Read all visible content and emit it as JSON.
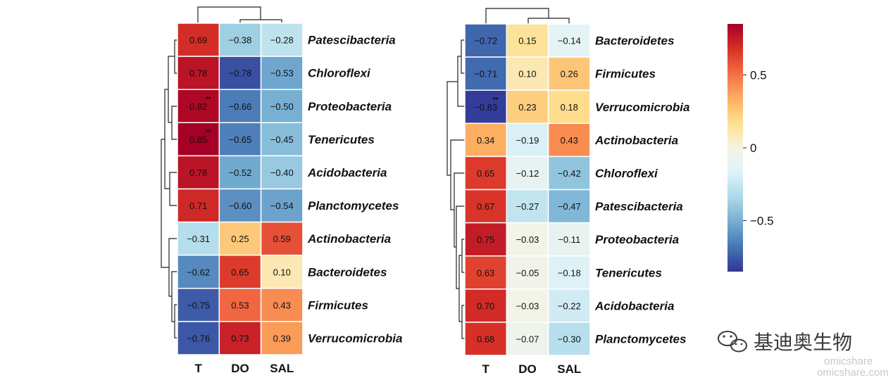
{
  "chart_data": [
    {
      "type": "heatmap",
      "columns": [
        "T",
        "DO",
        "SAL"
      ],
      "rows": [
        {
          "label": "Patescibacteria",
          "values": [
            0.69,
            -0.38,
            -0.28
          ],
          "labels": [
            "0.69",
            "−0.38",
            "−0.28"
          ],
          "stars": [
            "",
            "",
            ""
          ]
        },
        {
          "label": "Chloroflexi",
          "values": [
            0.78,
            -0.78,
            -0.53
          ],
          "labels": [
            "0.78",
            "−0.78",
            "−0.53"
          ],
          "stars": [
            "",
            "",
            ""
          ]
        },
        {
          "label": "Proteobacteria",
          "values": [
            0.82,
            -0.66,
            -0.5
          ],
          "labels": [
            "0.82",
            "−0.66",
            "−0.50"
          ],
          "stars": [
            "**",
            "",
            ""
          ]
        },
        {
          "label": "Tenericutes",
          "values": [
            0.85,
            -0.65,
            -0.45
          ],
          "labels": [
            "0.85",
            "−0.65",
            "−0.45"
          ],
          "stars": [
            "**",
            "",
            ""
          ]
        },
        {
          "label": "Acidobacteria",
          "values": [
            0.78,
            -0.52,
            -0.4
          ],
          "labels": [
            "0.78",
            "−0.52",
            "−0.40"
          ],
          "stars": [
            "",
            "",
            ""
          ]
        },
        {
          "label": "Planctomycetes",
          "values": [
            0.71,
            -0.6,
            -0.54
          ],
          "labels": [
            "0.71",
            "−0.60",
            "−0.54"
          ],
          "stars": [
            "",
            "",
            ""
          ]
        },
        {
          "label": "Actinobacteria",
          "values": [
            -0.31,
            0.25,
            0.59
          ],
          "labels": [
            "−0.31",
            "0.25",
            "0.59"
          ],
          "stars": [
            "",
            "",
            ""
          ]
        },
        {
          "label": "Bacteroidetes",
          "values": [
            -0.62,
            0.65,
            0.1
          ],
          "labels": [
            "−0.62",
            "0.65",
            "0.10"
          ],
          "stars": [
            "",
            "",
            ""
          ]
        },
        {
          "label": "Firmicutes",
          "values": [
            -0.75,
            0.53,
            0.43
          ],
          "labels": [
            "−0.75",
            "0.53",
            "0.43"
          ],
          "stars": [
            "",
            "",
            ""
          ]
        },
        {
          "label": "Verrucomicrobia",
          "values": [
            -0.76,
            0.73,
            0.39
          ],
          "labels": [
            "−0.76",
            "0.73",
            "0.39"
          ],
          "stars": [
            "",
            "",
            ""
          ]
        }
      ]
    },
    {
      "type": "heatmap",
      "columns": [
        "T",
        "DO",
        "SAL"
      ],
      "rows": [
        {
          "label": "Bacteroidetes",
          "values": [
            -0.72,
            0.15,
            -0.14
          ],
          "labels": [
            "−0.72",
            "0.15",
            "−0.14"
          ],
          "stars": [
            "",
            "",
            ""
          ]
        },
        {
          "label": "Firmicutes",
          "values": [
            -0.71,
            0.1,
            0.26
          ],
          "labels": [
            "−0.71",
            "0.10",
            "0.26"
          ],
          "stars": [
            "",
            "",
            ""
          ]
        },
        {
          "label": "Verrucomicrobia",
          "values": [
            -0.83,
            0.23,
            0.18
          ],
          "labels": [
            "−0.83",
            "0.23",
            "0.18"
          ],
          "stars": [
            "**",
            "",
            ""
          ]
        },
        {
          "label": "Actinobacteria",
          "values": [
            0.34,
            -0.19,
            0.43
          ],
          "labels": [
            "0.34",
            "−0.19",
            "0.43"
          ],
          "stars": [
            "",
            "",
            ""
          ]
        },
        {
          "label": "Chloroflexi",
          "values": [
            0.65,
            -0.12,
            -0.42
          ],
          "labels": [
            "0.65",
            "−0.12",
            "−0.42"
          ],
          "stars": [
            "",
            "",
            ""
          ]
        },
        {
          "label": "Patescibacteria",
          "values": [
            0.67,
            -0.27,
            -0.47
          ],
          "labels": [
            "0.67",
            "−0.27",
            "−0.47"
          ],
          "stars": [
            "",
            "",
            ""
          ]
        },
        {
          "label": "Proteobacteria",
          "values": [
            0.75,
            -0.03,
            -0.11
          ],
          "labels": [
            "0.75",
            "−0.03",
            "−0.11"
          ],
          "stars": [
            "",
            "",
            ""
          ]
        },
        {
          "label": "Tenericutes",
          "values": [
            0.63,
            -0.05,
            -0.18
          ],
          "labels": [
            "0.63",
            "−0.05",
            "−0.18"
          ],
          "stars": [
            "",
            "",
            ""
          ]
        },
        {
          "label": "Acidobacteria",
          "values": [
            0.7,
            -0.03,
            -0.22
          ],
          "labels": [
            "0.70",
            "−0.03",
            "−0.22"
          ],
          "stars": [
            "",
            "",
            ""
          ]
        },
        {
          "label": "Planctomycetes",
          "values": [
            0.68,
            -0.07,
            -0.3
          ],
          "labels": [
            "0.68",
            "−0.07",
            "−0.30"
          ],
          "stars": [
            "",
            "",
            ""
          ]
        }
      ]
    }
  ],
  "colorbar": {
    "range": [
      -0.85,
      0.85
    ],
    "ticks": [
      {
        "value": 0.5,
        "label": "0.5"
      },
      {
        "value": 0,
        "label": "0"
      },
      {
        "value": -0.5,
        "label": "−0.5"
      }
    ],
    "stops": [
      "#313695",
      "#4575b4",
      "#74add1",
      "#abd9e9",
      "#e0f3f8",
      "#f7f3e3",
      "#fee090",
      "#fdae61",
      "#f46d43",
      "#d73027",
      "#a50026"
    ]
  },
  "watermark": {
    "brand_cn": "基迪奥生物",
    "brand_en": "omicshare",
    "site": "omicshare.com"
  }
}
